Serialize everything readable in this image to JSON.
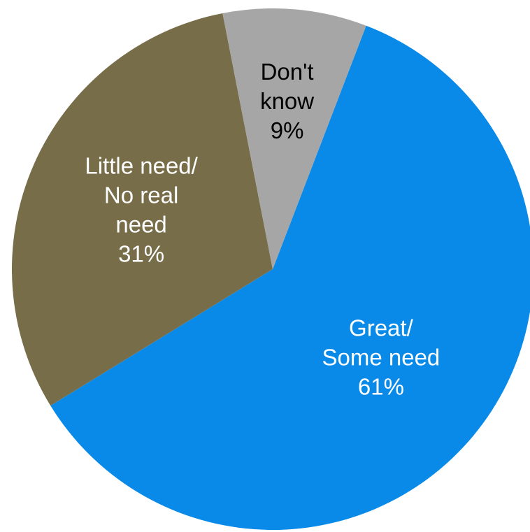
{
  "chart_data": {
    "type": "pie",
    "title": "",
    "legend": "none",
    "slices": [
      {
        "label_lines": [
          "Great/",
          "Some need"
        ],
        "value": 61,
        "value_label": "61%",
        "color": "#0a8ae8",
        "text_color": "#ffffff"
      },
      {
        "label_lines": [
          "Little need/",
          "No real",
          "need"
        ],
        "value": 31,
        "value_label": "31%",
        "color": "#776d49",
        "text_color": "#ffffff"
      },
      {
        "label_lines": [
          "Don't",
          "know"
        ],
        "value": 9,
        "value_label": "9%",
        "color": "#a6a6a6",
        "text_color": "#000000"
      }
    ]
  }
}
